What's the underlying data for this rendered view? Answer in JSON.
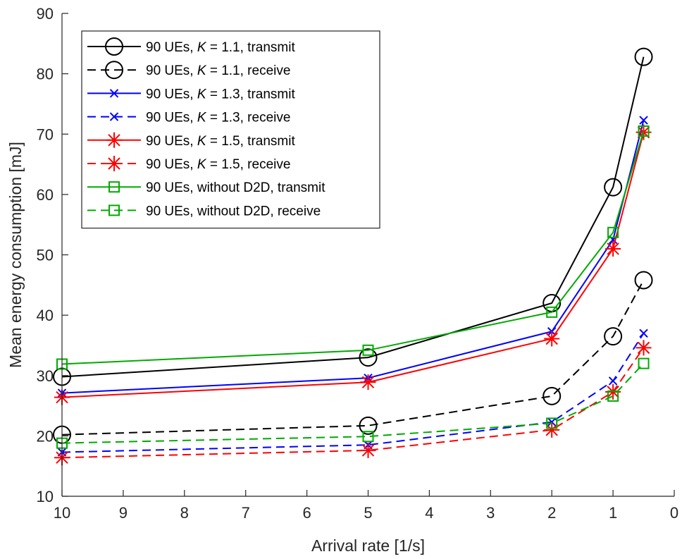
{
  "chart_data": {
    "type": "line",
    "xlabel": "Arrival rate [1/s]",
    "ylabel": "Mean energy consumption [mJ]",
    "xlim": [
      10,
      0
    ],
    "x_reversed": true,
    "ylim": [
      10,
      90
    ],
    "xticks": [
      "10",
      "9",
      "8",
      "7",
      "6",
      "5",
      "4",
      "3",
      "2",
      "1",
      "0"
    ],
    "yticks": [
      "10",
      "20",
      "30",
      "40",
      "50",
      "60",
      "70",
      "80",
      "90"
    ],
    "grid": false,
    "legend_position": "top-left",
    "x": [
      10,
      5,
      2,
      1,
      0.5
    ],
    "series": [
      {
        "name": "90 UEs,  K = 1.1, transmit",
        "name_prefix": "90 UEs,  ",
        "name_italic": "K",
        "name_suffix": " = 1.1, transmit",
        "color": "#000000",
        "dash": "solid",
        "marker": "circle",
        "values": [
          29.8,
          33.0,
          42.0,
          61.2,
          82.8
        ]
      },
      {
        "name": "90 UEs,  K = 1.1, receive",
        "name_prefix": "90 UEs,  ",
        "name_italic": "K",
        "name_suffix": " = 1.1, receive",
        "color": "#000000",
        "dash": "dashed",
        "marker": "circle",
        "values": [
          20.2,
          21.7,
          26.6,
          36.5,
          45.8
        ]
      },
      {
        "name": "90 UEs,  K = 1.3, transmit",
        "name_prefix": "90 UEs,  ",
        "name_italic": "K",
        "name_suffix": " = 1.3, transmit",
        "color": "#0000ff",
        "dash": "solid",
        "marker": "x",
        "values": [
          27.1,
          29.6,
          37.3,
          52.5,
          72.3
        ]
      },
      {
        "name": "90 UEs,  K = 1.3, receive",
        "name_prefix": "90 UEs,  ",
        "name_italic": "K",
        "name_suffix": " = 1.3, receive",
        "color": "#0000ff",
        "dash": "dashed",
        "marker": "x",
        "values": [
          17.3,
          18.5,
          22.3,
          29.1,
          37.0
        ]
      },
      {
        "name": "90 UEs,  K = 1.5, transmit",
        "name_prefix": "90 UEs,  ",
        "name_italic": "K",
        "name_suffix": " = 1.5, transmit",
        "color": "#ff0000",
        "dash": "solid",
        "marker": "star",
        "values": [
          26.4,
          28.9,
          36.1,
          51.0,
          70.3
        ]
      },
      {
        "name": "90 UEs,  K = 1.5, receive",
        "name_prefix": "90 UEs,  ",
        "name_italic": "K",
        "name_suffix": " = 1.5, receive",
        "color": "#ff0000",
        "dash": "dashed",
        "marker": "star",
        "values": [
          16.4,
          17.6,
          21.0,
          27.3,
          34.6
        ]
      },
      {
        "name": "90 UEs, without D2D, transmit",
        "name_prefix": "90 UEs, without D2D, transmit",
        "name_italic": "",
        "name_suffix": "",
        "color": "#00aa00",
        "dash": "solid",
        "marker": "square",
        "values": [
          31.9,
          34.2,
          40.5,
          53.7,
          70.5
        ]
      },
      {
        "name": "90 UEs, without D2D, receive",
        "name_prefix": "90 UEs, without D2D, receive",
        "name_italic": "",
        "name_suffix": "",
        "color": "#00aa00",
        "dash": "dashed",
        "marker": "square",
        "values": [
          18.8,
          19.9,
          22.1,
          26.6,
          32.0
        ]
      }
    ]
  }
}
